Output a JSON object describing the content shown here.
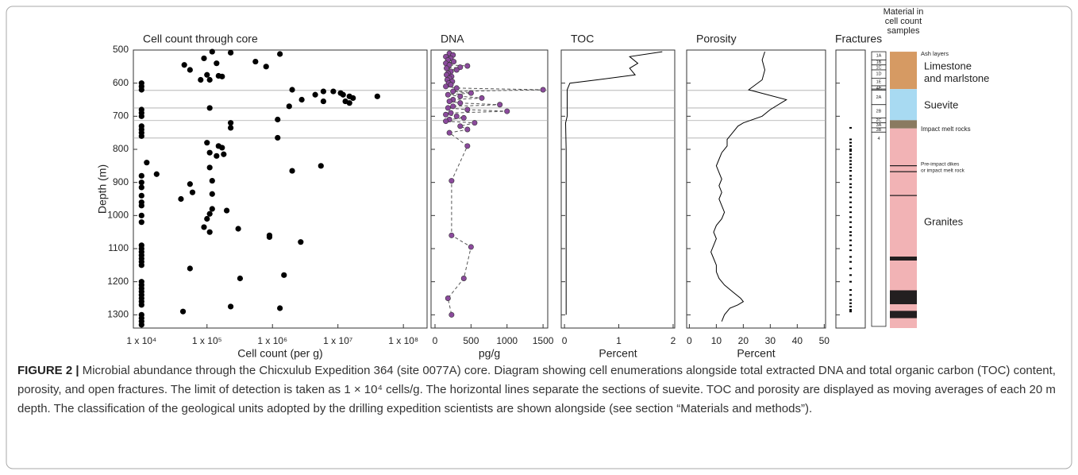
{
  "chart_data": [
    {
      "type": "scatter",
      "title": "Cell count through core",
      "xlabel": "Cell count (per g)",
      "ylabel": "Depth (m)",
      "log_x": true,
      "xlim": [
        7500,
        230000000
      ],
      "xticks": [
        {
          "value": 10000,
          "label": "1 x 10⁴"
        },
        {
          "value": 100000,
          "label": "1 x 10⁵"
        },
        {
          "value": 1000000,
          "label": "1 x 10⁶"
        },
        {
          "value": 10000000,
          "label": "1 x 10⁷"
        },
        {
          "value": 100000000,
          "label": "1 x 10⁸"
        }
      ],
      "ylim": [
        500,
        1340
      ],
      "y_reversed": true,
      "yticks": [
        500,
        600,
        700,
        800,
        900,
        1000,
        1100,
        1200,
        1300
      ],
      "hlines": [
        622,
        675,
        713,
        766
      ],
      "color": "#000000",
      "depth": [
        505,
        508,
        512,
        525,
        535,
        540,
        545,
        550,
        560,
        575,
        578,
        580,
        590,
        590,
        600,
        610,
        620,
        620,
        625,
        625,
        630,
        635,
        635,
        640,
        640,
        645,
        650,
        655,
        655,
        660,
        670,
        675,
        680,
        690,
        700,
        710,
        720,
        730,
        735,
        740,
        750,
        760,
        765,
        780,
        790,
        795,
        810,
        815,
        820,
        840,
        850,
        855,
        865,
        875,
        880,
        895,
        900,
        905,
        915,
        930,
        935,
        940,
        950,
        960,
        970,
        980,
        985,
        995,
        1000,
        1010,
        1020,
        1035,
        1040,
        1050,
        1060,
        1065,
        1080,
        1090,
        1100,
        1110,
        1120,
        1130,
        1140,
        1150,
        1160,
        1180,
        1190,
        1200,
        1210,
        1220,
        1230,
        1240,
        1250,
        1260,
        1270,
        1275,
        1280,
        1290,
        1300,
        1310,
        1320,
        1330
      ],
      "values": [
        120000,
        230000,
        1300000,
        90000,
        550000,
        140000,
        45000,
        800000,
        55000,
        100000,
        150000,
        170000,
        80000,
        110000,
        10000,
        10000,
        2000000,
        10000,
        6000000,
        8500000,
        11000000,
        4500000,
        12000000,
        15000000,
        40000000,
        17000000,
        2800000,
        6000000,
        13000000,
        15000000,
        1800000,
        110000,
        10000,
        10000,
        10000,
        1200000,
        230000,
        10000,
        230000,
        10000,
        10000,
        10000,
        1200000,
        100000,
        150000,
        170000,
        110000,
        180000,
        140000,
        12000,
        5500000,
        110000,
        2000000,
        17000,
        10000,
        120000,
        10000,
        55000,
        10000,
        60000,
        120000,
        10000,
        40000,
        10000,
        10000,
        120000,
        200000,
        110000,
        10000,
        100000,
        10000,
        90000,
        300000,
        110000,
        900000,
        900000,
        2700000,
        10000,
        10000,
        10000,
        10000,
        10000,
        10000,
        10000,
        55000,
        1500000,
        320000,
        10000,
        10000,
        10000,
        10000,
        10000,
        10000,
        10000,
        10000,
        230000,
        1300000,
        43000,
        10000,
        10000,
        10000,
        10000
      ]
    },
    {
      "type": "line",
      "title": "DNA",
      "xlabel": "pg/g",
      "xlim": [
        -55,
        1565
      ],
      "xticks": [
        0,
        500,
        1000,
        1500
      ],
      "color": "#8b4a9c",
      "line_color": "#555555",
      "dashed": true,
      "markers": true,
      "depth": [
        510,
        515,
        520,
        525,
        530,
        535,
        540,
        545,
        548,
        552,
        555,
        560,
        565,
        570,
        575,
        580,
        585,
        590,
        595,
        600,
        605,
        610,
        615,
        620,
        625,
        630,
        635,
        640,
        645,
        650,
        655,
        660,
        665,
        670,
        675,
        680,
        685,
        690,
        695,
        700,
        705,
        710,
        715,
        720,
        730,
        740,
        750,
        790,
        895,
        1060,
        1095,
        1190,
        1250,
        1300
      ],
      "values": [
        200,
        250,
        150,
        220,
        180,
        260,
        150,
        200,
        450,
        350,
        160,
        300,
        220,
        180,
        160,
        230,
        200,
        170,
        240,
        190,
        220,
        150,
        300,
        1500,
        250,
        500,
        180,
        350,
        650,
        250,
        200,
        350,
        900,
        250,
        180,
        450,
        1000,
        220,
        150,
        300,
        400,
        200,
        150,
        550,
        350,
        450,
        200,
        450,
        230,
        230,
        500,
        400,
        180,
        230
      ]
    },
    {
      "type": "line",
      "title": "TOC",
      "xlabel": "Percent",
      "xlim": [
        -0.06,
        2.03
      ],
      "xticks": [
        0,
        1,
        2
      ],
      "line_color": "#000000",
      "depth": [
        505,
        520,
        540,
        555,
        575,
        590,
        600,
        620,
        640,
        700,
        720,
        800,
        1000,
        1300
      ],
      "values": [
        1.8,
        1.2,
        1.35,
        1.2,
        1.3,
        0.6,
        0.1,
        0.05,
        0.05,
        0.05,
        0.02,
        0.03,
        0.03,
        0.03
      ]
    },
    {
      "type": "line",
      "title": "Porosity",
      "xlabel": "Percent",
      "xlim": [
        -1,
        50.5
      ],
      "xticks": [
        0,
        10,
        20,
        30,
        40,
        50
      ],
      "line_color": "#000000",
      "depth": [
        505,
        530,
        560,
        590,
        620,
        650,
        680,
        700,
        720,
        730,
        750,
        770,
        790,
        810,
        830,
        850,
        870,
        890,
        910,
        930,
        950,
        970,
        990,
        1010,
        1030,
        1050,
        1070,
        1090,
        1110,
        1130,
        1150,
        1170,
        1190,
        1210,
        1230,
        1250,
        1260,
        1270,
        1280,
        1300,
        1320
      ],
      "values": [
        28,
        27,
        28,
        27,
        22,
        36,
        30,
        27,
        20,
        18,
        16,
        14,
        14,
        12,
        11,
        10,
        11,
        12,
        11,
        12,
        11,
        12,
        13,
        12,
        10,
        9,
        10,
        9,
        8,
        9,
        10,
        10,
        11,
        13,
        16,
        19,
        20,
        18,
        15,
        13,
        12
      ]
    },
    {
      "type": "strip",
      "title": "Fractures",
      "color": "#000000",
      "values": [
        735,
        770,
        780,
        790,
        800,
        805,
        815,
        825,
        835,
        845,
        855,
        865,
        880,
        890,
        905,
        915,
        930,
        945,
        960,
        975,
        990,
        1005,
        1020,
        1035,
        1050,
        1060,
        1075,
        1090,
        1105,
        1125,
        1140,
        1160,
        1180,
        1200,
        1225,
        1240,
        1255,
        1265,
        1275,
        1285,
        1290
      ]
    },
    {
      "type": "log",
      "header": [
        "Material in",
        "cell count",
        "samples"
      ],
      "units": [
        {
          "label": "1A",
          "top": 505,
          "bottom": 530
        },
        {
          "label": "1B",
          "top": 530,
          "bottom": 545
        },
        {
          "label": "1C",
          "top": 545,
          "bottom": 560
        },
        {
          "label": "1D",
          "top": 560,
          "bottom": 585
        },
        {
          "label": "1E",
          "top": 585,
          "bottom": 608
        },
        {
          "label": "1F",
          "top": 608,
          "bottom": 618
        },
        {
          "label": "1G",
          "top": 618,
          "bottom": 621
        },
        {
          "label": "2A",
          "top": 621,
          "bottom": 665
        },
        {
          "label": "2B",
          "top": 665,
          "bottom": 705
        },
        {
          "label": "2C",
          "top": 705,
          "bottom": 720
        },
        {
          "label": "3A",
          "top": 720,
          "bottom": 735
        },
        {
          "label": "3B",
          "top": 735,
          "bottom": 748
        },
        {
          "label": "4",
          "top": 748,
          "bottom": 1335
        }
      ],
      "materials": [
        {
          "color": "#d69a63",
          "top": 505,
          "bottom": 618
        },
        {
          "color": "#a8daf2",
          "top": 618,
          "bottom": 712
        },
        {
          "color": "#8a7a60",
          "top": 712,
          "bottom": 737
        },
        {
          "color": "#f2b3b5",
          "top": 737,
          "bottom": 1340
        }
      ],
      "intrusions": [
        {
          "top": 848,
          "bottom": 851
        },
        {
          "top": 866,
          "bottom": 869
        },
        {
          "top": 938,
          "bottom": 941
        },
        {
          "top": 1124,
          "bottom": 1136
        },
        {
          "top": 1226,
          "bottom": 1268
        },
        {
          "top": 1288,
          "bottom": 1310
        }
      ],
      "intrusion_color": "#231f20",
      "labels": [
        [
          "Ash layers"
        ],
        [
          "Limestone",
          "and marlstone"
        ],
        [
          "Suevite"
        ],
        [
          "Impact melt rocks"
        ],
        [
          "Pre-impact dikes",
          "or impact melt rock"
        ],
        [
          "Granites"
        ]
      ]
    }
  ],
  "caption": {
    "label": "FIGURE 2 |",
    "text": "Microbial abundance through the Chicxulub Expedition 364 (site 0077A) core. Diagram showing cell enumerations alongside total extracted DNA and total organic carbon (TOC) content, porosity, and open fractures. The limit of detection is taken as 1 × 10⁴ cells/g. The horizontal lines separate the sections of suevite. TOC and porosity are displayed as moving averages of each 20 m depth. The classification of the geological units adopted by the drilling expedition scientists are shown alongside (see section “Materials and methods”)."
  }
}
